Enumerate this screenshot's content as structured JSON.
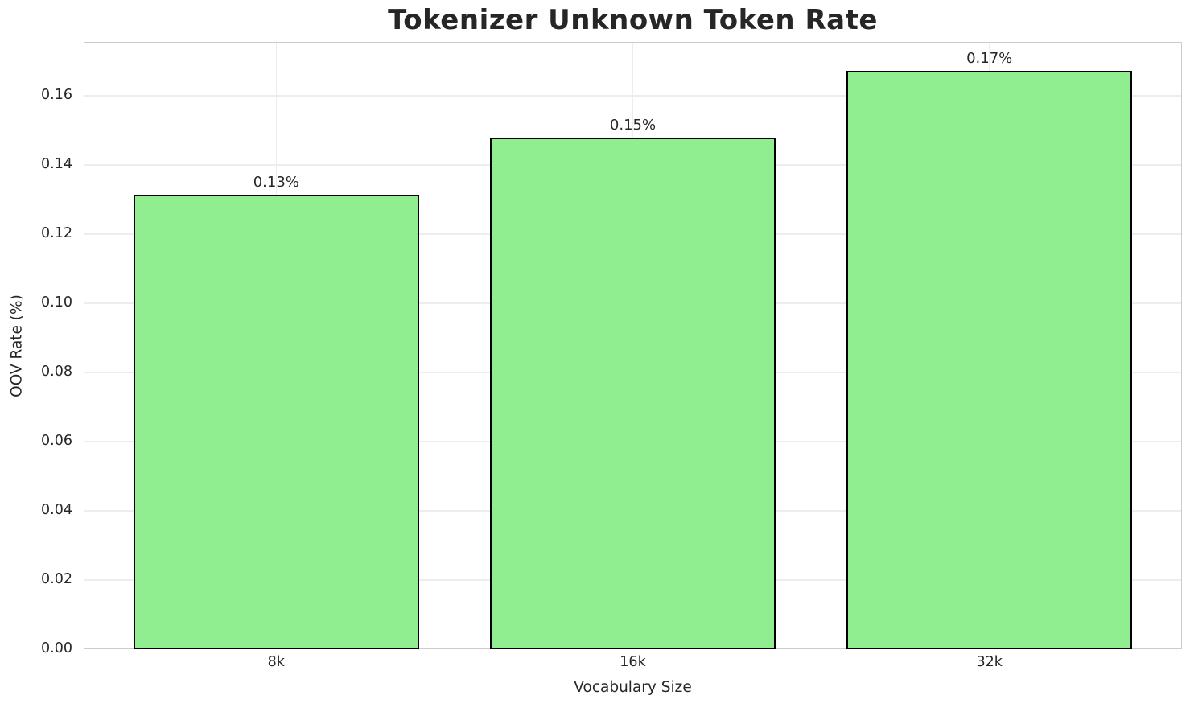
{
  "figure": {
    "title": "Tokenizer Unknown Token Rate"
  },
  "chart_data": {
    "type": "bar",
    "title": "Tokenizer Unknown Token Rate",
    "xlabel": "Vocabulary Size",
    "ylabel": "OOV Rate (%)",
    "categories": [
      "8k",
      "16k",
      "32k"
    ],
    "values": [
      0.1314,
      0.1479,
      0.1672
    ],
    "bar_labels": [
      "0.13%",
      "0.15%",
      "0.17%"
    ],
    "ylim": [
      0,
      0.1756
    ],
    "yticks": [
      0,
      0.02,
      0.04,
      0.06,
      0.08,
      0.1,
      0.12,
      0.14,
      0.16
    ],
    "ytick_labels": [
      "0.00",
      "0.02",
      "0.04",
      "0.06",
      "0.08",
      "0.10",
      "0.12",
      "0.14",
      "0.16"
    ],
    "grid": true,
    "legend_position": "none",
    "bar_color": "#90EE90",
    "bar_edge_color": "#000000"
  },
  "style": {
    "grid_color": "#ededed",
    "spine_color": "#cccccc",
    "text_color": "#262626",
    "background_color": "#ffffff"
  }
}
